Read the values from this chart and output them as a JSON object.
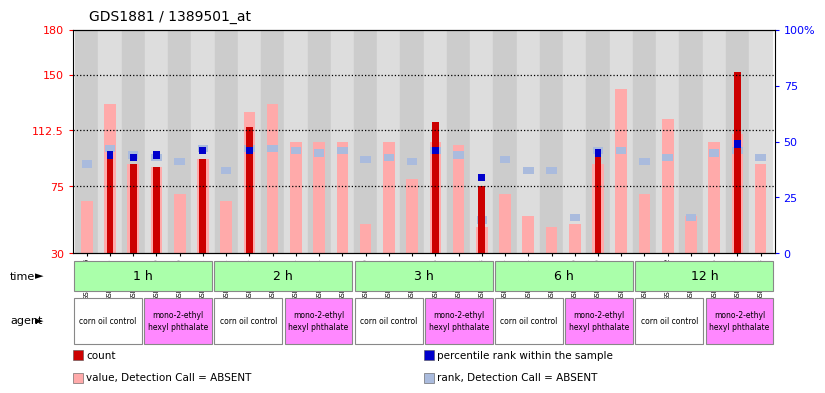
{
  "title": "GDS1881 / 1389501_at",
  "samples": [
    "GSM100955",
    "GSM100956",
    "GSM100957",
    "GSM100969",
    "GSM100970",
    "GSM100971",
    "GSM100958",
    "GSM100959",
    "GSM100972",
    "GSM100973",
    "GSM100974",
    "GSM100975",
    "GSM100960",
    "GSM100961",
    "GSM100962",
    "GSM100976",
    "GSM100977",
    "GSM100978",
    "GSM100963",
    "GSM100964",
    "GSM100965",
    "GSM100979",
    "GSM100980",
    "GSM100981",
    "GSM100951",
    "GSM100952",
    "GSM100953",
    "GSM100966",
    "GSM100967",
    "GSM100968"
  ],
  "count": [
    0,
    95,
    90,
    88,
    0,
    93,
    0,
    115,
    0,
    0,
    0,
    0,
    0,
    0,
    0,
    118,
    0,
    75,
    0,
    0,
    0,
    0,
    95,
    0,
    0,
    0,
    0,
    0,
    152,
    0
  ],
  "value_absent": [
    65,
    130,
    90,
    88,
    70,
    93,
    65,
    125,
    130,
    105,
    105,
    105,
    50,
    105,
    80,
    105,
    103,
    48,
    70,
    55,
    48,
    50,
    90,
    140,
    70,
    120,
    55,
    105,
    110,
    90
  ],
  "rank_absent_pct": [
    40,
    47,
    44,
    43,
    41,
    47,
    37,
    47,
    47,
    46,
    45,
    46,
    42,
    43,
    41,
    46,
    44,
    15,
    42,
    37,
    37,
    16,
    46,
    46,
    41,
    43,
    16,
    45,
    46,
    43
  ],
  "percentile": [
    0,
    44,
    43,
    44,
    0,
    46,
    0,
    46,
    0,
    0,
    0,
    0,
    0,
    0,
    0,
    46,
    0,
    34,
    0,
    0,
    0,
    0,
    45,
    0,
    0,
    0,
    0,
    0,
    49,
    0
  ],
  "time_groups": [
    {
      "label": "1 h",
      "start": 0,
      "end": 6
    },
    {
      "label": "2 h",
      "start": 6,
      "end": 12
    },
    {
      "label": "3 h",
      "start": 12,
      "end": 18
    },
    {
      "label": "6 h",
      "start": 18,
      "end": 24
    },
    {
      "label": "12 h",
      "start": 24,
      "end": 30
    }
  ],
  "agent_groups": [
    {
      "label": "corn oil control",
      "start": 0,
      "end": 3,
      "color": "#ffffff"
    },
    {
      "label": "mono-2-ethyl\nhexyl phthalate",
      "start": 3,
      "end": 6,
      "color": "#ff88ff"
    },
    {
      "label": "corn oil control",
      "start": 6,
      "end": 9,
      "color": "#ffffff"
    },
    {
      "label": "mono-2-ethyl\nhexyl phthalate",
      "start": 9,
      "end": 12,
      "color": "#ff88ff"
    },
    {
      "label": "corn oil control",
      "start": 12,
      "end": 15,
      "color": "#ffffff"
    },
    {
      "label": "mono-2-ethyl\nhexyl phthalate",
      "start": 15,
      "end": 18,
      "color": "#ff88ff"
    },
    {
      "label": "corn oil control",
      "start": 18,
      "end": 21,
      "color": "#ffffff"
    },
    {
      "label": "mono-2-ethyl\nhexyl phthalate",
      "start": 21,
      "end": 24,
      "color": "#ff88ff"
    },
    {
      "label": "corn oil control",
      "start": 24,
      "end": 27,
      "color": "#ffffff"
    },
    {
      "label": "mono-2-ethyl\nhexyl phthalate",
      "start": 27,
      "end": 30,
      "color": "#ff88ff"
    }
  ],
  "ylim": [
    30,
    180
  ],
  "y2lim": [
    0,
    100
  ],
  "yticks": [
    30,
    75,
    112.5,
    150,
    180
  ],
  "ytick_labels": [
    "30",
    "75",
    "112.5",
    "150",
    "180"
  ],
  "y2ticks": [
    0,
    25,
    50,
    75,
    100
  ],
  "y2tick_labels": [
    "0",
    "25",
    "50",
    "75",
    "100%"
  ],
  "gridlines": [
    75,
    112.5,
    150
  ],
  "bar_color": "#cc0000",
  "value_absent_color": "#ffaaaa",
  "rank_absent_color": "#aabbdd",
  "percentile_color": "#0000cc",
  "time_row_color": "#aaffaa",
  "agent_pink_color": "#ff88ff",
  "agent_white_color": "#ffffff"
}
